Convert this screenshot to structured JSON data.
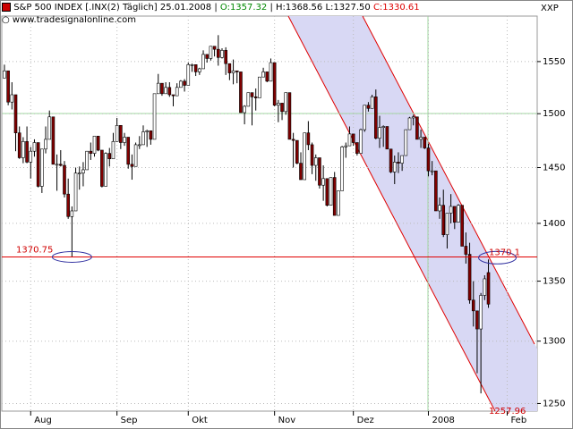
{
  "header": {
    "symbol": "S&P 500 INDEX [.INX(2)  Täglich] 25.01.2008",
    "open": "O:1357.32",
    "high": "H:1368.56",
    "low": "L:1327.50",
    "close": "C:1330.61",
    "source": "www.tradesignalonline.com",
    "corner": "XXP"
  },
  "chart_data": {
    "type": "candlestick",
    "log": true,
    "grid": true,
    "up_color": "#ffffff",
    "down_color": "#800000",
    "line_color": "#000000",
    "ylim": [
      1244,
      1595
    ],
    "yticks": [
      1250,
      1300,
      1350,
      1400,
      1450,
      1500,
      1550
    ],
    "xlim": [
      -0.7,
      142
    ],
    "xticks": [
      {
        "value": 7,
        "label": "Aug"
      },
      {
        "value": 30,
        "label": "Sep"
      },
      {
        "value": 49,
        "label": "Okt"
      },
      {
        "value": 72,
        "label": "Nov"
      },
      {
        "value": 93,
        "label": "Dez"
      },
      {
        "value": 113,
        "label": "2008"
      },
      {
        "value": 134,
        "label": "Feb"
      }
    ],
    "annotations": [
      1370.75,
      1370.1,
      1257.96
    ],
    "open": [
      1534,
      1541,
      1511,
      1518,
      1482,
      1459,
      1474,
      1455,
      1465,
      1473,
      1433,
      1467,
      1476,
      1497,
      1453,
      1453,
      1452,
      1426,
      1406,
      1411,
      1445,
      1445,
      1448,
      1465,
      1463,
      1479,
      1466,
      1433,
      1463,
      1458,
      1474,
      1489,
      1473,
      1478,
      1453,
      1451,
      1471,
      1471,
      1483,
      1484,
      1476,
      1519,
      1529,
      1519,
      1525,
      1518,
      1517,
      1525,
      1531,
      1527,
      1547,
      1547,
      1540,
      1543,
      1557,
      1553,
      1565,
      1562,
      1554,
      1561,
      1548,
      1539,
      1541,
      1540,
      1501,
      1507,
      1520,
      1516,
      1515,
      1535,
      1540,
      1531,
      1549,
      1508,
      1510,
      1502,
      1520,
      1476,
      1475,
      1454,
      1439,
      1482,
      1471,
      1452,
      1459,
      1434,
      1440,
      1416,
      1441,
      1407,
      1429,
      1469,
      1470,
      1481,
      1473,
      1463,
      1485,
      1508,
      1505,
      1516,
      1477,
      1487,
      1488,
      1467,
      1446,
      1455,
      1454,
      1461,
      1485,
      1496,
      1497,
      1476,
      1478,
      1468,
      1447,
      1447,
      1411,
      1416,
      1390,
      1409,
      1415,
      1401,
      1416,
      1380,
      1373,
      1334,
      1325,
      1310,
      1338,
      1357.32
    ],
    "high": [
      1547,
      1541,
      1530,
      1518,
      1488,
      1478,
      1488,
      1469,
      1476,
      1473,
      1467,
      1488,
      1503,
      1497,
      1462,
      1466,
      1456,
      1440,
      1415,
      1450,
      1451,
      1455,
      1465,
      1473,
      1479,
      1479,
      1466,
      1464,
      1468,
      1482,
      1496,
      1489,
      1482,
      1478,
      1462,
      1473,
      1479,
      1489,
      1485,
      1484,
      1519,
      1538,
      1529,
      1530,
      1530,
      1518,
      1529,
      1532,
      1533,
      1549,
      1548,
      1547,
      1544,
      1561,
      1557,
      1565,
      1565,
      1576,
      1563,
      1564,
      1548,
      1552,
      1541,
      1540,
      1508,
      1520,
      1520,
      1524,
      1535,
      1544,
      1540,
      1553,
      1549,
      1513,
      1510,
      1520,
      1520,
      1482,
      1475,
      1464,
      1482,
      1493,
      1473,
      1462,
      1459,
      1452,
      1440,
      1441,
      1446,
      1429,
      1470,
      1473,
      1488,
      1481,
      1473,
      1486,
      1508,
      1511,
      1518,
      1523,
      1498,
      1489,
      1488,
      1467,
      1461,
      1464,
      1461,
      1485,
      1497,
      1499,
      1497,
      1485,
      1478,
      1472,
      1456,
      1447,
      1423,
      1430,
      1409,
      1426,
      1415,
      1417,
      1416,
      1392,
      1383,
      1350,
      1325,
      1340,
      1355,
      1368.56
    ],
    "low": [
      1534,
      1508,
      1504,
      1465,
      1458,
      1454,
      1454,
      1440,
      1460,
      1432,
      1427,
      1463,
      1476,
      1453,
      1429,
      1451,
      1423,
      1404,
      1370.75,
      1411,
      1430,
      1433,
      1448,
      1457,
      1460,
      1465,
      1432,
      1433,
      1451,
      1458,
      1474,
      1467,
      1470,
      1449,
      1439,
      1451,
      1467,
      1471,
      1469,
      1471,
      1476,
      1519,
      1517,
      1519,
      1516,
      1507,
      1517,
      1525,
      1521,
      1527,
      1540,
      1536,
      1537,
      1543,
      1549,
      1551,
      1555,
      1546,
      1553,
      1537,
      1532,
      1528,
      1529,
      1501,
      1490,
      1507,
      1489,
      1503,
      1515,
      1535,
      1530,
      1531,
      1507,
      1492,
      1494,
      1499,
      1476,
      1450,
      1453,
      1439,
      1439,
      1466,
      1444,
      1438,
      1431,
      1420,
      1415,
      1416,
      1407,
      1407,
      1429,
      1459,
      1470,
      1470,
      1461,
      1463,
      1483,
      1502,
      1505,
      1476,
      1468,
      1469,
      1467,
      1445,
      1435,
      1445,
      1447,
      1461,
      1485,
      1489,
      1476,
      1468,
      1467,
      1442,
      1443,
      1411,
      1404,
      1388,
      1378,
      1400,
      1395,
      1401,
      1380,
      1365,
      1331,
      1312,
      1274,
      1257.96,
      1334,
      1327.5
    ],
    "close": [
      1541,
      1511,
      1518,
      1482,
      1459,
      1474,
      1455,
      1465,
      1473,
      1433,
      1467,
      1476,
      1497,
      1453,
      1453,
      1452,
      1426,
      1406,
      1411,
      1445,
      1445,
      1448,
      1465,
      1463,
      1479,
      1466,
      1433,
      1463,
      1458,
      1474,
      1489,
      1473,
      1478,
      1453,
      1451,
      1471,
      1471,
      1483,
      1484,
      1476,
      1519,
      1529,
      1519,
      1525,
      1518,
      1517,
      1525,
      1531,
      1527,
      1547,
      1547,
      1540,
      1543,
      1557,
      1553,
      1565,
      1562,
      1554,
      1561,
      1548,
      1539,
      1541,
      1540,
      1501,
      1507,
      1520,
      1516,
      1515,
      1535,
      1540,
      1531,
      1549,
      1508,
      1510,
      1502,
      1520,
      1476,
      1475,
      1454,
      1439,
      1482,
      1471,
      1452,
      1459,
      1434,
      1440,
      1416,
      1441,
      1407,
      1429,
      1469,
      1470,
      1481,
      1473,
      1463,
      1485,
      1508,
      1505,
      1516,
      1477,
      1487,
      1488,
      1467,
      1446,
      1455,
      1454,
      1461,
      1485,
      1496,
      1497,
      1476,
      1478,
      1468,
      1447,
      1447,
      1411,
      1416,
      1390,
      1409,
      1415,
      1401,
      1416,
      1380,
      1373,
      1334,
      1325,
      1310,
      1338,
      1352,
      1330.61
    ]
  }
}
